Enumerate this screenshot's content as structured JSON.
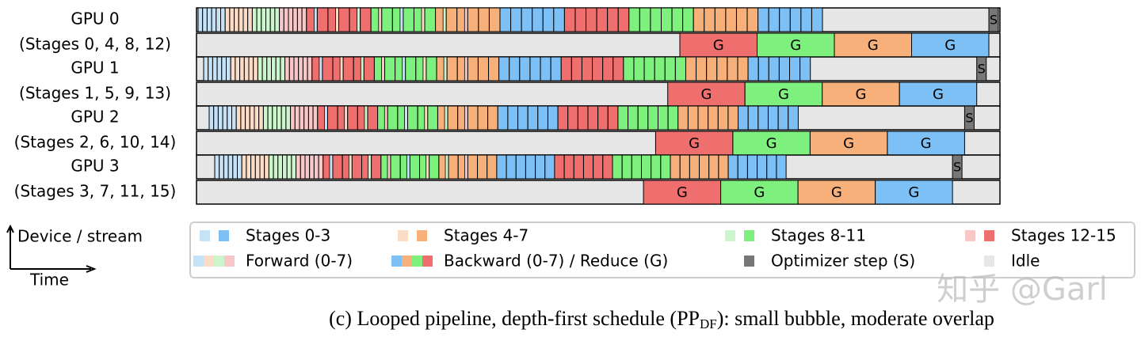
{
  "gpus": [
    {
      "name": "GPU 0",
      "stages": "(Stages 0, 4, 8, 12)",
      "reduce": [
        "G",
        "G",
        "G",
        "G"
      ],
      "step": "S"
    },
    {
      "name": "GPU 1",
      "stages": "(Stages 1, 5, 9, 13)",
      "reduce": [
        "G",
        "G",
        "G",
        "G"
      ],
      "step": "S"
    },
    {
      "name": "GPU 2",
      "stages": "(Stages 2, 6, 10, 14)",
      "reduce": [
        "G",
        "G",
        "G",
        "G"
      ],
      "step": "S"
    },
    {
      "name": "GPU 3",
      "stages": "(Stages 3, 7, 11, 15)",
      "reduce": [
        "G",
        "G",
        "G",
        "G"
      ],
      "step": "S"
    }
  ],
  "axes": {
    "y": "Device / stream",
    "x": "Time"
  },
  "legend": [
    "Stages 0-3",
    "Stages 4-7",
    "Stages 8-11",
    "Stages 12-15",
    "Forward (0-7)",
    "Backward (0-7) / Reduce (G)",
    "Optimizer step (S)",
    "Idle"
  ],
  "caption": {
    "text": "(c) Looped pipeline, depth-first schedule (PP",
    "sub": "DF",
    "rest": "): small bubble, moderate overlap"
  },
  "watermark": "知乎 @Garl"
}
